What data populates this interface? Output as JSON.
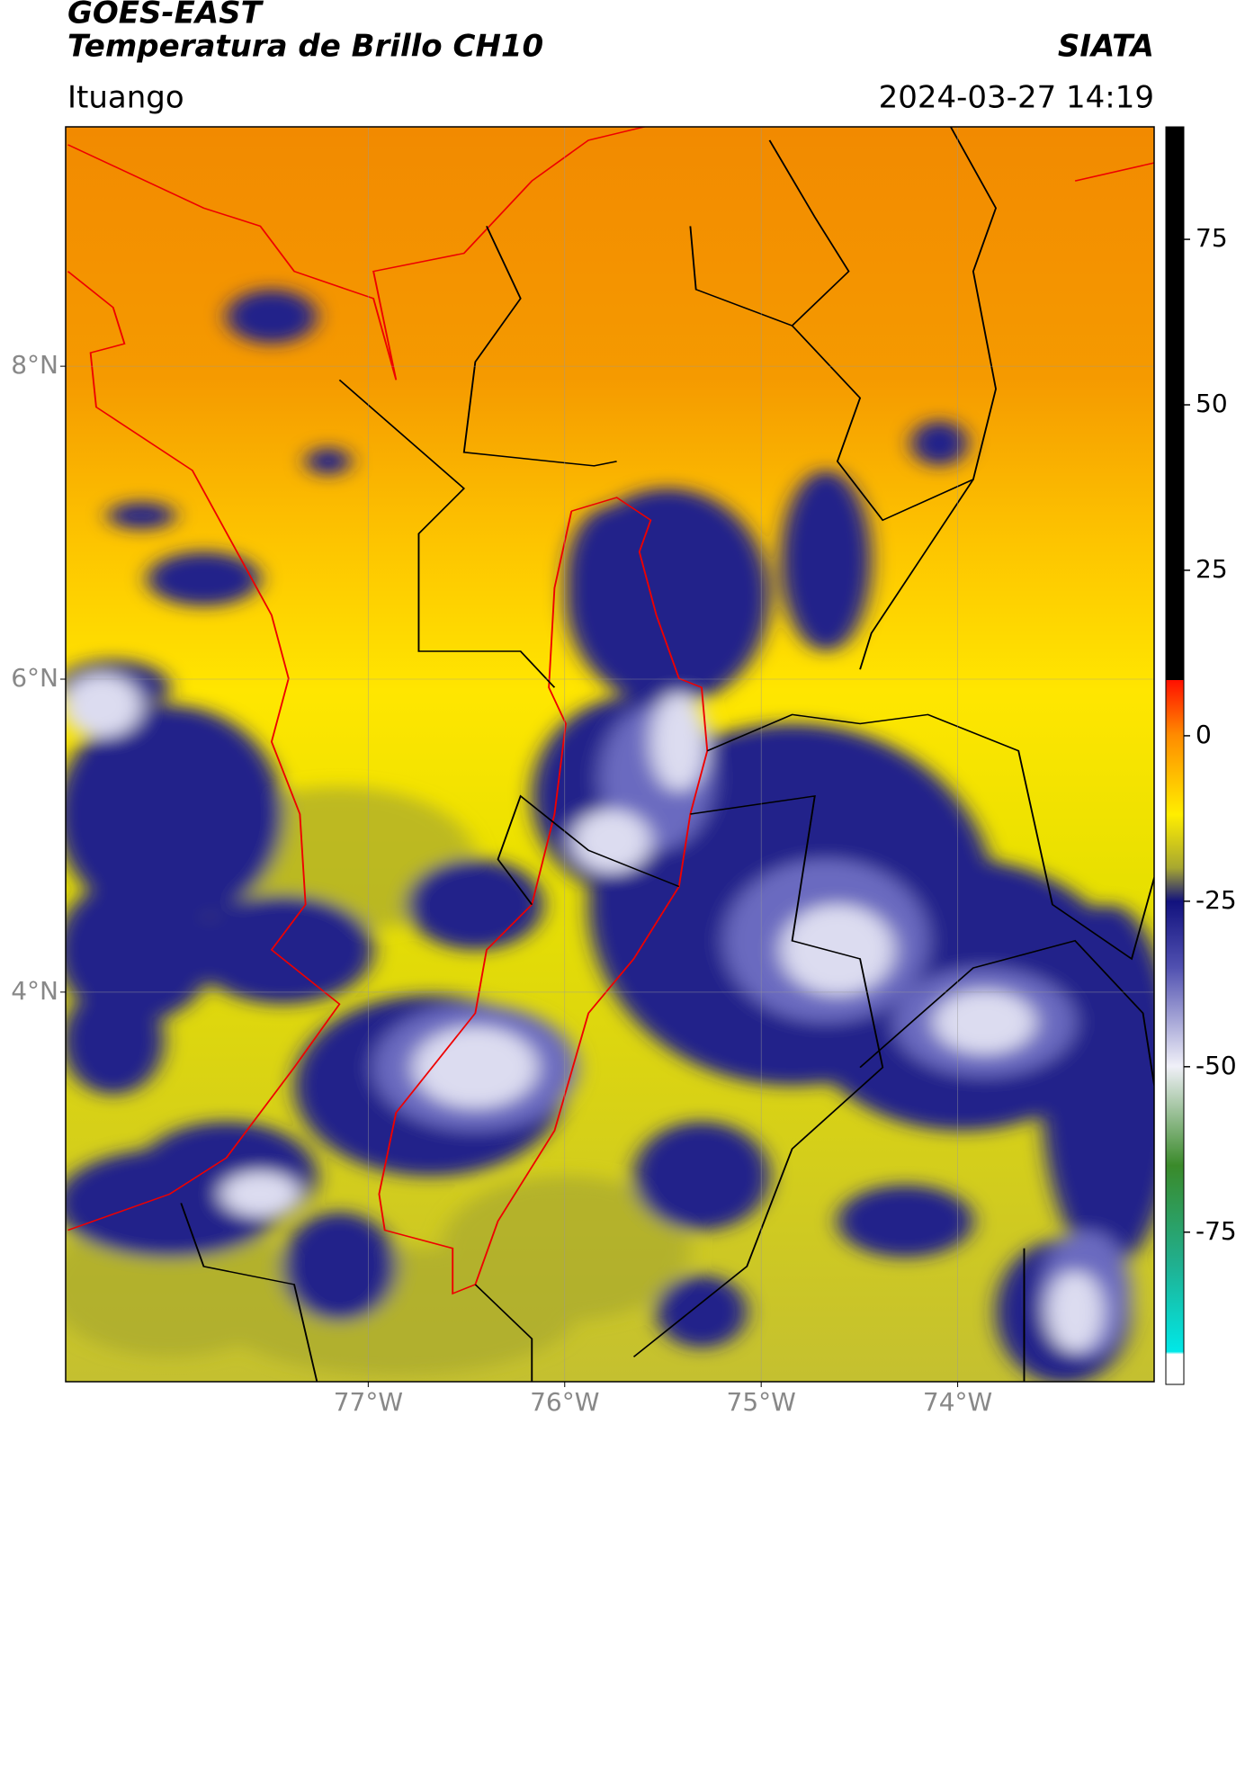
{
  "header": {
    "title": "GOES-EAST",
    "subtitle": "Temperatura de Brillo CH10",
    "source": "SIATA",
    "location": "Ituango",
    "datetime": "2024-03-27 14:19"
  },
  "map": {
    "xlim": [
      -78.54,
      -73.0
    ],
    "ylim": [
      1.51,
      9.53
    ],
    "xticks": [
      {
        "value": -77,
        "label": "77°W"
      },
      {
        "value": -76,
        "label": "76°W"
      },
      {
        "value": -75,
        "label": "75°W"
      },
      {
        "value": -74,
        "label": "74°W"
      }
    ],
    "yticks": [
      {
        "value": 4,
        "label": "4°N"
      },
      {
        "value": 6,
        "label": "6°N"
      },
      {
        "value": 8,
        "label": "8°N"
      }
    ],
    "grid": true
  },
  "colorbar": {
    "lim": [
      -98,
      92
    ],
    "ticks": [
      -75,
      -50,
      -25,
      0,
      25,
      50,
      75
    ]
  }
}
